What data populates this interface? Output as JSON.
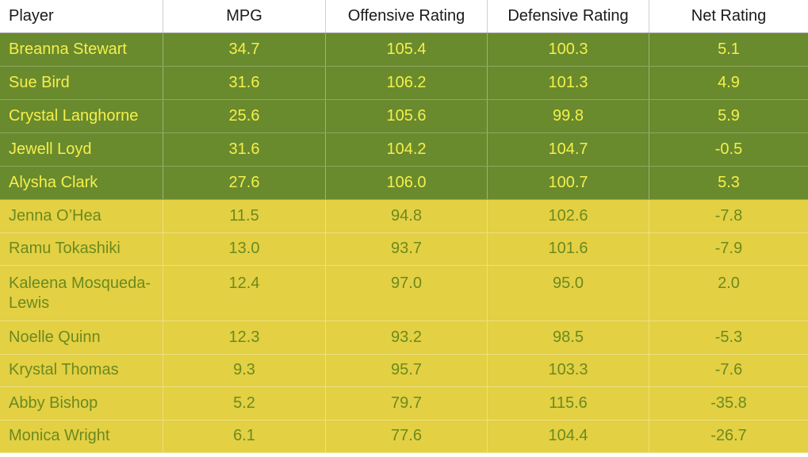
{
  "table": {
    "headers": [
      "Player",
      "MPG",
      "Offensive Rating",
      "Defensive Rating",
      "Net Rating"
    ],
    "starters": [
      {
        "player": "Breanna Stewart",
        "mpg": "34.7",
        "ortg": "105.4",
        "drtg": "100.3",
        "net": "5.1"
      },
      {
        "player": "Sue Bird",
        "mpg": "31.6",
        "ortg": "106.2",
        "drtg": "101.3",
        "net": "4.9"
      },
      {
        "player": "Crystal Langhorne",
        "mpg": "25.6",
        "ortg": "105.6",
        "drtg": "99.8",
        "net": "5.9"
      },
      {
        "player": "Jewell Loyd",
        "mpg": "31.6",
        "ortg": "104.2",
        "drtg": "104.7",
        "net": "-0.5"
      },
      {
        "player": "Alysha Clark",
        "mpg": "27.6",
        "ortg": "106.0",
        "drtg": "100.7",
        "net": "5.3"
      }
    ],
    "bench": [
      {
        "player": "Jenna O’Hea",
        "mpg": "11.5",
        "ortg": "94.8",
        "drtg": "102.6",
        "net": "-7.8"
      },
      {
        "player": "Ramu Tokashiki",
        "mpg": "13.0",
        "ortg": "93.7",
        "drtg": "101.6",
        "net": "-7.9"
      },
      {
        "player": "Kaleena Mosqueda-Lewis",
        "mpg": "12.4",
        "ortg": "97.0",
        "drtg": "95.0",
        "net": "2.0"
      },
      {
        "player": "Noelle Quinn",
        "mpg": "12.3",
        "ortg": "93.2",
        "drtg": "98.5",
        "net": "-5.3"
      },
      {
        "player": "Krystal Thomas",
        "mpg": "9.3",
        "ortg": "95.7",
        "drtg": "103.3",
        "net": "-7.6"
      },
      {
        "player": "Abby Bishop",
        "mpg": "5.2",
        "ortg": "79.7",
        "drtg": "115.6",
        "net": "-35.8"
      },
      {
        "player": "Monica Wright",
        "mpg": "6.1",
        "ortg": "77.6",
        "drtg": "104.4",
        "net": "-26.7"
      }
    ]
  },
  "colors": {
    "starter_bg": "#6a8a2e",
    "starter_text": "#f4f04a",
    "bench_bg": "#e3d043",
    "bench_text": "#6b8a1f"
  }
}
